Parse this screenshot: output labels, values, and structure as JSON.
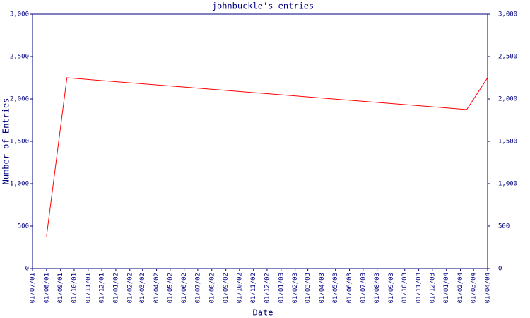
{
  "chart_data": {
    "type": "line",
    "title": "johnbuckle's entries",
    "x_label": "Date",
    "y_label": "Number of Entries",
    "xlim": [
      "01/07/01",
      "01/04/04"
    ],
    "xticks": [
      "01/07/01",
      "01/08/01",
      "01/09/01",
      "01/10/01",
      "01/11/01",
      "01/12/01",
      "01/01/02",
      "01/02/02",
      "01/03/02",
      "01/04/02",
      "01/05/02",
      "01/06/02",
      "01/07/02",
      "01/08/02",
      "01/09/02",
      "01/10/02",
      "01/11/02",
      "01/12/02",
      "01/01/03",
      "01/02/03",
      "01/03/03",
      "01/04/03",
      "01/05/03",
      "01/06/03",
      "01/07/03",
      "01/08/03",
      "01/09/03",
      "01/10/03",
      "01/11/03",
      "01/12/03",
      "01/01/04",
      "01/02/04",
      "01/03/04",
      "01/04/04"
    ],
    "ylim": [
      0,
      3000
    ],
    "yticks": [
      0,
      500,
      {
        "value": 1000,
        "label": "1,000"
      },
      {
        "value": 1500,
        "label": "1,500"
      },
      {
        "value": 2000,
        "label": "2,000"
      },
      {
        "value": 2500,
        "label": "2,500"
      },
      {
        "value": 3000,
        "label": "3,000"
      }
    ],
    "series": [
      {
        "name": "entries",
        "color": "#ff0000",
        "x": [
          "01/08/01",
          "15/09/01",
          "15/02/04",
          "01/04/04"
        ],
        "values": [
          380,
          2250,
          1875,
          2250
        ]
      }
    ]
  }
}
